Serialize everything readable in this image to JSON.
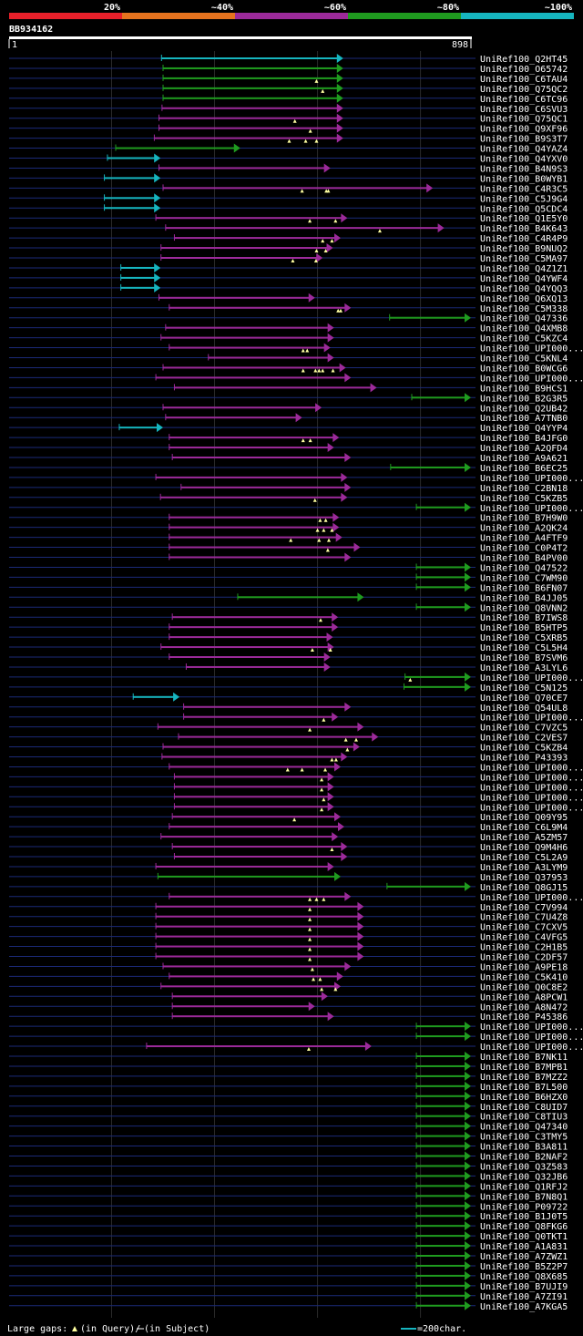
{
  "query_id": "BB934162",
  "query_start": "1",
  "query_end": "898",
  "color_scale": [
    {
      "label": "20%",
      "color": "#e8202a"
    },
    {
      "label": "~40%",
      "color": "#e6731e"
    },
    {
      "label": "~60%",
      "color": "#9c2a9a"
    },
    {
      "label": "~80%",
      "color": "#1f9b1f"
    },
    {
      "label": "~100%",
      "color": "#16b5bf"
    }
  ],
  "legend": {
    "gaps_prefix": "Large gaps: ",
    "gaps_query": "(in Query)/",
    "gaps_subject": " (in Subject)",
    "scale_label": "=200char."
  },
  "chart_data": {
    "type": "alignment-overview",
    "query_length": 898,
    "identity_bins": [
      "20%",
      "~40%",
      "~60%",
      "~80%",
      "~100%"
    ],
    "hits": [
      {
        "name": "UniRef100_Q2HT45",
        "start": 297,
        "end": 650,
        "bin": "~100%",
        "gaps": []
      },
      {
        "name": "UniRef100_O65742",
        "start": 300,
        "end": 650,
        "bin": "~80%",
        "gaps": []
      },
      {
        "name": "UniRef100_C6TAU4",
        "start": 300,
        "end": 650,
        "bin": "~80%",
        "gaps": [
          598
        ]
      },
      {
        "name": "UniRef100_Q75QC2",
        "start": 300,
        "end": 650,
        "bin": "~80%",
        "gaps": [
          610
        ]
      },
      {
        "name": "UniRef100_C6TC96",
        "start": 300,
        "end": 650,
        "bin": "~80%",
        "gaps": []
      },
      {
        "name": "UniRef100_C6SVU3",
        "start": 298,
        "end": 650,
        "bin": "~60%",
        "gaps": []
      },
      {
        "name": "UniRef100_Q75QC1",
        "start": 292,
        "end": 650,
        "bin": "~60%",
        "gaps": [
          556
        ]
      },
      {
        "name": "UniRef100_Q9XF96",
        "start": 292,
        "end": 650,
        "bin": "~60%",
        "gaps": [
          586
        ]
      },
      {
        "name": "UniRef100_B9S3T7",
        "start": 283,
        "end": 650,
        "bin": "~60%",
        "gaps": [
          545,
          577,
          598
        ]
      },
      {
        "name": "UniRef100_Q4YAZ4",
        "start": 208,
        "end": 450,
        "bin": "~80%",
        "gaps": []
      },
      {
        "name": "UniRef100_Q4YXV0",
        "start": 192,
        "end": 295,
        "bin": "~100%",
        "gaps": []
      },
      {
        "name": "UniRef100_B4N9S3",
        "start": 292,
        "end": 625,
        "bin": "~60%",
        "gaps": []
      },
      {
        "name": "UniRef100_B0WYB1",
        "start": 186,
        "end": 295,
        "bin": "~100%",
        "gaps": []
      },
      {
        "name": "UniRef100_C4R3C5",
        "start": 300,
        "end": 824,
        "bin": "~60%",
        "gaps": [
          570,
          617,
          621
        ]
      },
      {
        "name": "UniRef100_C5J9G4",
        "start": 186,
        "end": 295,
        "bin": "~100%",
        "gaps": []
      },
      {
        "name": "UniRef100_Q5CDC4",
        "start": 186,
        "end": 295,
        "bin": "~100%",
        "gaps": []
      },
      {
        "name": "UniRef100_Q1E5Y0",
        "start": 286,
        "end": 658,
        "bin": "~60%",
        "gaps": [
          585,
          635
        ]
      },
      {
        "name": "UniRef100_B4K643",
        "start": 305,
        "end": 846,
        "bin": "~60%",
        "gaps": [
          721
        ]
      },
      {
        "name": "UniRef100_C4R4P9",
        "start": 322,
        "end": 645,
        "bin": "~60%",
        "gaps": [
          610,
          628
        ]
      },
      {
        "name": "UniRef100_B9NUQ2",
        "start": 296,
        "end": 630,
        "bin": "~60%",
        "gaps": [
          598,
          616
        ]
      },
      {
        "name": "UniRef100_C5MA97",
        "start": 296,
        "end": 610,
        "bin": "~60%",
        "gaps": [
          552,
          597
        ]
      },
      {
        "name": "UniRef100_Q4Z1Z1",
        "start": 218,
        "end": 295,
        "bin": "~100%",
        "gaps": []
      },
      {
        "name": "UniRef100_Q4YWF4",
        "start": 218,
        "end": 295,
        "bin": "~100%",
        "gaps": []
      },
      {
        "name": "UniRef100_Q4YQQ3",
        "start": 218,
        "end": 295,
        "bin": "~100%",
        "gaps": []
      },
      {
        "name": "UniRef100_Q6XQ13",
        "start": 292,
        "end": 595,
        "bin": "~60%",
        "gaps": []
      },
      {
        "name": "UniRef100_C5M338",
        "start": 312,
        "end": 665,
        "bin": "~60%",
        "gaps": [
          640,
          645
        ]
      },
      {
        "name": "UniRef100_Q47336",
        "start": 740,
        "end": 908,
        "bin": "~80%",
        "gaps": []
      },
      {
        "name": "UniRef100_Q4XMB8",
        "start": 305,
        "end": 632,
        "bin": "~60%",
        "gaps": []
      },
      {
        "name": "UniRef100_C5KZC4",
        "start": 296,
        "end": 632,
        "bin": "~60%",
        "gaps": []
      },
      {
        "name": "UniRef100_UPI000_1",
        "start": 312,
        "end": 625,
        "bin": "~60%",
        "gaps": [
          572,
          580
        ]
      },
      {
        "name": "UniRef100_C5KNL4",
        "start": 388,
        "end": 632,
        "bin": "~60%",
        "gaps": []
      },
      {
        "name": "UniRef100_B0WCG6",
        "start": 300,
        "end": 655,
        "bin": "~60%",
        "gaps": [
          572,
          596,
          603,
          610,
          630
        ]
      },
      {
        "name": "UniRef100_UPI000_2",
        "start": 286,
        "end": 665,
        "bin": "~60%",
        "gaps": []
      },
      {
        "name": "UniRef100_B9HCS1",
        "start": 322,
        "end": 715,
        "bin": "~60%",
        "gaps": []
      },
      {
        "name": "UniRef100_B2G3R5",
        "start": 783,
        "end": 908,
        "bin": "~80%",
        "gaps": []
      },
      {
        "name": "UniRef100_Q2UB42",
        "start": 300,
        "end": 608,
        "bin": "~60%",
        "gaps": []
      },
      {
        "name": "UniRef100_A7TNB0",
        "start": 305,
        "end": 570,
        "bin": "~60%",
        "gaps": []
      },
      {
        "name": "UniRef100_Q4YYP4",
        "start": 215,
        "end": 300,
        "bin": "~100%",
        "gaps": []
      },
      {
        "name": "UniRef100_B4JFG0",
        "start": 312,
        "end": 642,
        "bin": "~60%",
        "gaps": [
          572,
          586
        ]
      },
      {
        "name": "UniRef100_A2QFD4",
        "start": 312,
        "end": 632,
        "bin": "~60%",
        "gaps": []
      },
      {
        "name": "UniRef100_A9A621",
        "start": 318,
        "end": 665,
        "bin": "~60%",
        "gaps": []
      },
      {
        "name": "UniRef100_B6EC25",
        "start": 742,
        "end": 908,
        "bin": "~80%",
        "gaps": []
      },
      {
        "name": "UniRef100_UPI000_3",
        "start": 286,
        "end": 658,
        "bin": "~60%",
        "gaps": []
      },
      {
        "name": "UniRef100_C2BN18",
        "start": 335,
        "end": 665,
        "bin": "~60%",
        "gaps": []
      },
      {
        "name": "UniRef100_C5KZB5",
        "start": 295,
        "end": 658,
        "bin": "~60%",
        "gaps": [
          595
        ]
      },
      {
        "name": "UniRef100_UPI000_4",
        "start": 792,
        "end": 908,
        "bin": "~80%",
        "gaps": []
      },
      {
        "name": "UniRef100_B7H9W0",
        "start": 312,
        "end": 642,
        "bin": "~60%",
        "gaps": [
          605,
          616
        ]
      },
      {
        "name": "UniRef100_A2QK24",
        "start": 312,
        "end": 642,
        "bin": "~60%",
        "gaps": [
          600,
          612,
          628
        ]
      },
      {
        "name": "UniRef100_A4FTF9",
        "start": 312,
        "end": 648,
        "bin": "~60%",
        "gaps": [
          548,
          603,
          622
        ]
      },
      {
        "name": "UniRef100_C0P4T2",
        "start": 312,
        "end": 683,
        "bin": "~60%",
        "gaps": [
          620
        ]
      },
      {
        "name": "UniRef100_B4PV00",
        "start": 312,
        "end": 665,
        "bin": "~60%",
        "gaps": []
      },
      {
        "name": "UniRef100_Q47522",
        "start": 792,
        "end": 908,
        "bin": "~80%",
        "gaps": []
      },
      {
        "name": "UniRef100_C7WM90",
        "start": 792,
        "end": 908,
        "bin": "~80%",
        "gaps": []
      },
      {
        "name": "UniRef100_B6FN07",
        "start": 792,
        "end": 908,
        "bin": "~80%",
        "gaps": []
      },
      {
        "name": "UniRef100_B4JJ05",
        "start": 445,
        "end": 690,
        "bin": "~80%",
        "gaps": []
      },
      {
        "name": "UniRef100_Q8VNN2",
        "start": 792,
        "end": 908,
        "bin": "~80%",
        "gaps": []
      },
      {
        "name": "UniRef100_B7IWS8",
        "start": 318,
        "end": 640,
        "bin": "~60%",
        "gaps": [
          606
        ]
      },
      {
        "name": "UniRef100_B5HTP5",
        "start": 312,
        "end": 640,
        "bin": "~60%",
        "gaps": []
      },
      {
        "name": "UniRef100_C5XRB5",
        "start": 312,
        "end": 630,
        "bin": "~60%",
        "gaps": []
      },
      {
        "name": "UniRef100_C5L5H4",
        "start": 296,
        "end": 632,
        "bin": "~60%",
        "gaps": [
          590,
          625
        ]
      },
      {
        "name": "UniRef100_B7SVM6",
        "start": 312,
        "end": 625,
        "bin": "~60%",
        "gaps": []
      },
      {
        "name": "UniRef100_A3LYL6",
        "start": 345,
        "end": 625,
        "bin": "~60%",
        "gaps": []
      },
      {
        "name": "UniRef100_UPI000_5",
        "start": 770,
        "end": 908,
        "bin": "~80%",
        "gaps": [
          780
        ]
      },
      {
        "name": "UniRef100_C5N125",
        "start": 768,
        "end": 908,
        "bin": "~80%",
        "gaps": []
      },
      {
        "name": "UniRef100_Q70CE7",
        "start": 242,
        "end": 332,
        "bin": "~100%",
        "gaps": []
      },
      {
        "name": "UniRef100_Q54UL8",
        "start": 340,
        "end": 665,
        "bin": "~60%",
        "gaps": []
      },
      {
        "name": "UniRef100_UPI000_6",
        "start": 340,
        "end": 640,
        "bin": "~60%",
        "gaps": [
          612
        ]
      },
      {
        "name": "UniRef100_C7VZC5",
        "start": 290,
        "end": 690,
        "bin": "~60%",
        "gaps": [
          585
        ]
      },
      {
        "name": "UniRef100_C2VES7",
        "start": 330,
        "end": 718,
        "bin": "~60%",
        "gaps": [
          655,
          675
        ]
      },
      {
        "name": "UniRef100_C5KZB4",
        "start": 300,
        "end": 682,
        "bin": "~60%",
        "gaps": [
          658
        ]
      },
      {
        "name": "UniRef100_P43393",
        "start": 298,
        "end": 658,
        "bin": "~60%",
        "gaps": [
          628,
          636
        ]
      },
      {
        "name": "UniRef100_UPI000_7",
        "start": 312,
        "end": 645,
        "bin": "~60%",
        "gaps": [
          542,
          570,
          615
        ]
      },
      {
        "name": "UniRef100_UPI000_8",
        "start": 322,
        "end": 632,
        "bin": "~60%",
        "gaps": [
          608
        ]
      },
      {
        "name": "UniRef100_UPI000_9",
        "start": 322,
        "end": 632,
        "bin": "~60%",
        "gaps": [
          608
        ]
      },
      {
        "name": "UniRef100_UPI000_10",
        "start": 322,
        "end": 632,
        "bin": "~60%",
        "gaps": [
          612
        ]
      },
      {
        "name": "UniRef100_UPI000_11",
        "start": 322,
        "end": 632,
        "bin": "~60%",
        "gaps": [
          608
        ]
      },
      {
        "name": "UniRef100_Q09Y95",
        "start": 318,
        "end": 645,
        "bin": "~60%",
        "gaps": [
          555
        ]
      },
      {
        "name": "UniRef100_C6L9M4",
        "start": 312,
        "end": 652,
        "bin": "~60%",
        "gaps": []
      },
      {
        "name": "UniRef100_A5ZM57",
        "start": 296,
        "end": 640,
        "bin": "~60%",
        "gaps": []
      },
      {
        "name": "UniRef100_Q9M4H6",
        "start": 318,
        "end": 658,
        "bin": "~60%",
        "gaps": [
          628
        ]
      },
      {
        "name": "UniRef100_C5L2A9",
        "start": 322,
        "end": 658,
        "bin": "~60%",
        "gaps": []
      },
      {
        "name": "UniRef100_A3LYM9",
        "start": 286,
        "end": 632,
        "bin": "~60%",
        "gaps": []
      },
      {
        "name": "UniRef100_Q37953",
        "start": 290,
        "end": 645,
        "bin": "~80%",
        "gaps": []
      },
      {
        "name": "UniRef100_Q8GJ15",
        "start": 735,
        "end": 908,
        "bin": "~80%",
        "gaps": []
      },
      {
        "name": "UniRef100_UPI000_12",
        "start": 312,
        "end": 665,
        "bin": "~60%",
        "gaps": [
          585,
          598,
          612
        ]
      },
      {
        "name": "UniRef100_C7V994",
        "start": 286,
        "end": 690,
        "bin": "~60%",
        "gaps": [
          585
        ]
      },
      {
        "name": "UniRef100_C7U4Z8",
        "start": 286,
        "end": 690,
        "bin": "~60%",
        "gaps": [
          585
        ]
      },
      {
        "name": "UniRef100_C7CXV5",
        "start": 286,
        "end": 690,
        "bin": "~60%",
        "gaps": [
          585
        ]
      },
      {
        "name": "UniRef100_C4VFG5",
        "start": 286,
        "end": 690,
        "bin": "~60%",
        "gaps": [
          585
        ]
      },
      {
        "name": "UniRef100_C2H1B5",
        "start": 286,
        "end": 690,
        "bin": "~60%",
        "gaps": [
          585
        ]
      },
      {
        "name": "UniRef100_C2DF57",
        "start": 286,
        "end": 690,
        "bin": "~60%",
        "gaps": [
          585
        ]
      },
      {
        "name": "UniRef100_A9PE18",
        "start": 300,
        "end": 665,
        "bin": "~60%",
        "gaps": [
          590
        ]
      },
      {
        "name": "UniRef100_C5K410",
        "start": 312,
        "end": 650,
        "bin": "~60%",
        "gaps": [
          592,
          605
        ]
      },
      {
        "name": "UniRef100_Q0C8E2",
        "start": 296,
        "end": 645,
        "bin": "~60%",
        "gaps": [
          608,
          635
        ]
      },
      {
        "name": "UniRef100_A8PCW1",
        "start": 318,
        "end": 620,
        "bin": "~60%",
        "gaps": []
      },
      {
        "name": "UniRef100_A8N472",
        "start": 318,
        "end": 595,
        "bin": "~60%",
        "gaps": []
      },
      {
        "name": "UniRef100_P45386",
        "start": 318,
        "end": 632,
        "bin": "~60%",
        "gaps": []
      },
      {
        "name": "UniRef100_UPI000_13",
        "start": 792,
        "end": 908,
        "bin": "~80%",
        "gaps": []
      },
      {
        "name": "UniRef100_UPI000_14",
        "start": 792,
        "end": 908,
        "bin": "~80%",
        "gaps": []
      },
      {
        "name": "UniRef100_UPI000_15",
        "start": 268,
        "end": 705,
        "bin": "~60%",
        "gaps": [
          583
        ]
      },
      {
        "name": "UniRef100_B7NK11",
        "start": 792,
        "end": 908,
        "bin": "~80%",
        "gaps": []
      },
      {
        "name": "UniRef100_B7MPB1",
        "start": 792,
        "end": 908,
        "bin": "~80%",
        "gaps": []
      },
      {
        "name": "UniRef100_B7MZZ2",
        "start": 792,
        "end": 908,
        "bin": "~80%",
        "gaps": []
      },
      {
        "name": "UniRef100_B7L500",
        "start": 792,
        "end": 908,
        "bin": "~80%",
        "gaps": []
      },
      {
        "name": "UniRef100_B6HZX0",
        "start": 792,
        "end": 908,
        "bin": "~80%",
        "gaps": []
      },
      {
        "name": "UniRef100_C8UID7",
        "start": 792,
        "end": 908,
        "bin": "~80%",
        "gaps": []
      },
      {
        "name": "UniRef100_C8TIU3",
        "start": 792,
        "end": 908,
        "bin": "~80%",
        "gaps": []
      },
      {
        "name": "UniRef100_Q47340",
        "start": 792,
        "end": 908,
        "bin": "~80%",
        "gaps": []
      },
      {
        "name": "UniRef100_C3TMY5",
        "start": 792,
        "end": 908,
        "bin": "~80%",
        "gaps": []
      },
      {
        "name": "UniRef100_B3A811",
        "start": 792,
        "end": 908,
        "bin": "~80%",
        "gaps": []
      },
      {
        "name": "UniRef100_B2NAF2",
        "start": 792,
        "end": 908,
        "bin": "~80%",
        "gaps": []
      },
      {
        "name": "UniRef100_Q3Z583",
        "start": 792,
        "end": 908,
        "bin": "~80%",
        "gaps": []
      },
      {
        "name": "UniRef100_Q32JB6",
        "start": 792,
        "end": 908,
        "bin": "~80%",
        "gaps": []
      },
      {
        "name": "UniRef100_Q1RFJ2",
        "start": 792,
        "end": 908,
        "bin": "~80%",
        "gaps": []
      },
      {
        "name": "UniRef100_B7N8Q1",
        "start": 792,
        "end": 908,
        "bin": "~80%",
        "gaps": []
      },
      {
        "name": "UniRef100_P09722",
        "start": 792,
        "end": 908,
        "bin": "~80%",
        "gaps": []
      },
      {
        "name": "UniRef100_B1J0T5",
        "start": 792,
        "end": 908,
        "bin": "~80%",
        "gaps": []
      },
      {
        "name": "UniRef100_Q8FKG6",
        "start": 792,
        "end": 908,
        "bin": "~80%",
        "gaps": []
      },
      {
        "name": "UniRef100_Q0TKT1",
        "start": 792,
        "end": 908,
        "bin": "~80%",
        "gaps": []
      },
      {
        "name": "UniRef100_A1A831",
        "start": 792,
        "end": 908,
        "bin": "~80%",
        "gaps": []
      },
      {
        "name": "UniRef100_A7ZWZ1",
        "start": 792,
        "end": 908,
        "bin": "~80%",
        "gaps": []
      },
      {
        "name": "UniRef100_B5Z2P7",
        "start": 792,
        "end": 908,
        "bin": "~80%",
        "gaps": []
      },
      {
        "name": "UniRef100_Q8X685",
        "start": 792,
        "end": 908,
        "bin": "~80%",
        "gaps": []
      },
      {
        "name": "UniRef100_B7UJI9",
        "start": 792,
        "end": 908,
        "bin": "~80%",
        "gaps": []
      },
      {
        "name": "UniRef100_A7ZI91",
        "start": 792,
        "end": 908,
        "bin": "~80%",
        "gaps": []
      },
      {
        "name": "UniRef100_A7KGA5",
        "start": 792,
        "end": 908,
        "bin": "~80%",
        "gaps": []
      }
    ]
  }
}
